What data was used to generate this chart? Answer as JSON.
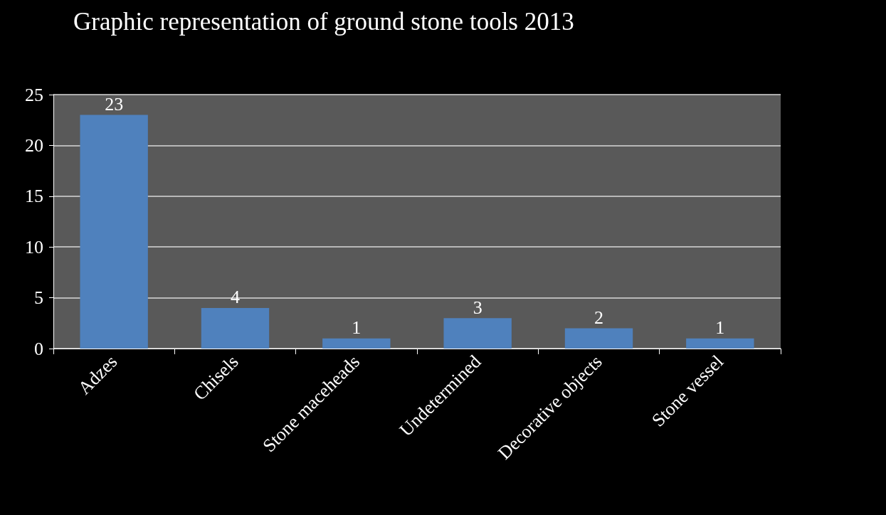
{
  "chart_data": {
    "type": "bar",
    "title": "Graphic representation of ground stone tools 2013",
    "categories": [
      "Adzes",
      "Chisels",
      "Stone maceheads",
      "Undetermined",
      "Decorative objects",
      "Stone vessel"
    ],
    "values": [
      23,
      4,
      1,
      3,
      2,
      1
    ],
    "color": "#4f81bd",
    "ylim": [
      0,
      25
    ],
    "yticks": [
      0,
      5,
      10,
      15,
      20,
      25
    ],
    "grid": "y",
    "data_labels": true
  }
}
